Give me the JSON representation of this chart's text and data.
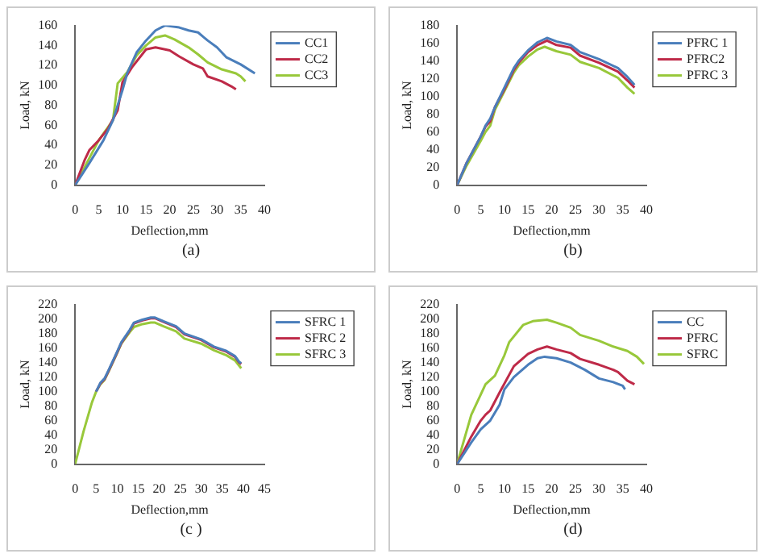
{
  "chart_data": [
    {
      "type": "line",
      "xlabel": "Deflection,mm",
      "ylabel": "Load, kN",
      "annotations": [
        "(a)"
      ],
      "xlim": [
        0,
        40
      ],
      "xticks": [
        0,
        5,
        10,
        15,
        20,
        25,
        30,
        35,
        40
      ],
      "ylim": [
        0,
        160
      ],
      "yticks": [
        0,
        20,
        40,
        60,
        80,
        100,
        120,
        140,
        160
      ],
      "legend": "top right",
      "marker": "none",
      "series": [
        {
          "name": "CC1",
          "color": "#4a7ebb",
          "x": [
            0,
            3,
            6,
            8,
            10,
            11,
            13,
            15,
            17,
            19,
            22,
            24,
            26,
            28,
            30,
            32,
            35,
            38
          ],
          "values": [
            0,
            22,
            45,
            65,
            95,
            112,
            133,
            145,
            155,
            160,
            158,
            155,
            153,
            145,
            138,
            128,
            121,
            112
          ]
        },
        {
          "name": "CC2",
          "color": "#be2a48",
          "x": [
            0,
            2,
            3,
            5,
            7,
            9,
            10,
            12,
            15,
            17,
            20,
            22,
            25,
            27,
            28,
            31,
            33,
            34
          ],
          "values": [
            0,
            25,
            35,
            45,
            57,
            75,
            103,
            118,
            136,
            138,
            135,
            129,
            121,
            117,
            109,
            104,
            99,
            96
          ]
        },
        {
          "name": "CC3",
          "color": "#98c83a",
          "x": [
            0,
            2,
            5,
            8,
            9,
            11,
            13,
            15,
            17,
            19,
            21,
            24,
            26,
            28,
            31,
            34,
            35,
            36
          ],
          "values": [
            0,
            18,
            45,
            65,
            102,
            113,
            130,
            140,
            148,
            150,
            146,
            138,
            131,
            123,
            116,
            112,
            109,
            104
          ]
        }
      ]
    },
    {
      "type": "line",
      "xlabel": "Deflection,mm",
      "ylabel": "Load, kN",
      "annotations": [
        "(b)"
      ],
      "xlim": [
        0,
        40
      ],
      "xticks": [
        0,
        5,
        10,
        15,
        20,
        25,
        30,
        35,
        40
      ],
      "ylim": [
        0,
        180
      ],
      "yticks": [
        0,
        20,
        40,
        60,
        80,
        100,
        120,
        140,
        160,
        180
      ],
      "legend": "top right",
      "marker": "none",
      "series": [
        {
          "name": "PFRC 1",
          "color": "#4a7ebb",
          "x": [
            0,
            2,
            5,
            6,
            7,
            8,
            10,
            12,
            13,
            15,
            17,
            19,
            21,
            24,
            26,
            30,
            34,
            36,
            37.5
          ],
          "values": [
            0,
            25,
            55,
            67,
            75,
            88,
            110,
            132,
            140,
            152,
            161,
            166,
            162,
            158,
            150,
            142,
            132,
            122,
            113
          ]
        },
        {
          "name": "PFRC2",
          "color": "#be2a48",
          "x": [
            0,
            2,
            5,
            6,
            7,
            8,
            10,
            12,
            13,
            15,
            17,
            19,
            21,
            24,
            26,
            30,
            34,
            36,
            37.5
          ],
          "values": [
            0,
            25,
            55,
            66,
            72,
            88,
            108,
            130,
            138,
            150,
            158,
            163,
            158,
            155,
            146,
            138,
            128,
            118,
            110
          ]
        },
        {
          "name": "PFRC 3",
          "color": "#98c83a",
          "x": [
            0,
            2,
            5,
            6,
            7,
            8,
            10,
            12,
            13,
            15,
            17,
            18.5,
            21,
            24,
            26,
            30,
            34,
            36,
            37.5
          ],
          "values": [
            0,
            22,
            50,
            60,
            67,
            85,
            106,
            127,
            135,
            145,
            153,
            156,
            151,
            147,
            139,
            132,
            121,
            110,
            103
          ]
        }
      ]
    },
    {
      "type": "line",
      "xlabel": "Deflection,mm",
      "ylabel": "Load, kN",
      "annotations": [
        "(c )"
      ],
      "xlim": [
        0,
        45
      ],
      "xticks": [
        0,
        5,
        10,
        15,
        20,
        25,
        30,
        35,
        40,
        45
      ],
      "ylim": [
        0,
        220
      ],
      "yticks": [
        0,
        20,
        40,
        60,
        80,
        100,
        120,
        140,
        160,
        180,
        200,
        220
      ],
      "legend": "top right",
      "marker": "none",
      "series": [
        {
          "name": "SFRC 1",
          "color": "#4a7ebb",
          "x": [
            5,
            6,
            7,
            8,
            10,
            11,
            13,
            14,
            16,
            18,
            19,
            21,
            24,
            26,
            30,
            33,
            36,
            38,
            39,
            39.5
          ],
          "values": [
            100,
            112,
            118,
            130,
            155,
            168,
            185,
            195,
            199,
            202,
            202,
            197,
            190,
            180,
            172,
            162,
            156,
            149,
            141,
            139
          ]
        },
        {
          "name": "SFRC 2",
          "color": "#be2a48",
          "x": [
            5,
            6,
            7,
            8,
            10,
            11,
            13,
            14,
            16,
            18,
            19,
            21,
            24,
            26,
            30,
            33,
            36,
            38,
            39,
            39.5
          ],
          "values": [
            100,
            111,
            117,
            129,
            154,
            167,
            184,
            194,
            198,
            201,
            201,
            196,
            189,
            179,
            171,
            161,
            155,
            148,
            140,
            138
          ]
        },
        {
          "name": "SFRC 3",
          "color": "#98c83a",
          "x": [
            0,
            2,
            4,
            5,
            6,
            7,
            8,
            10,
            11,
            13,
            14,
            16,
            18,
            19,
            21,
            24,
            26,
            30,
            33,
            36,
            38,
            39.5
          ],
          "values": [
            0,
            45,
            85,
            100,
            110,
            116,
            128,
            153,
            166,
            182,
            189,
            193,
            195,
            195,
            190,
            183,
            173,
            166,
            157,
            150,
            143,
            132
          ]
        }
      ]
    },
    {
      "type": "line",
      "xlabel": "Deflection,mm",
      "ylabel": "Load, kN",
      "annotations": [
        "(d)"
      ],
      "xlim": [
        0,
        40
      ],
      "xticks": [
        0,
        5,
        10,
        15,
        20,
        25,
        30,
        35,
        40
      ],
      "ylim": [
        0,
        220
      ],
      "yticks": [
        0,
        20,
        40,
        60,
        80,
        100,
        120,
        140,
        160,
        180,
        200,
        220
      ],
      "legend": "top right",
      "marker": "none",
      "series": [
        {
          "name": "CC",
          "color": "#4a7ebb",
          "x": [
            0,
            3,
            5,
            7,
            9,
            10,
            12,
            15,
            17,
            18.5,
            21,
            24,
            27,
            30,
            33,
            35,
            35.5
          ],
          "values": [
            0,
            30,
            48,
            60,
            82,
            103,
            120,
            137,
            146,
            148,
            146,
            140,
            130,
            118,
            113,
            108,
            103
          ]
        },
        {
          "name": "PFRC",
          "color": "#be2a48",
          "x": [
            0,
            3,
            5,
            6,
            7,
            9,
            12,
            15,
            17,
            19,
            21,
            24,
            26,
            30,
            33,
            34,
            36,
            37.5
          ],
          "values": [
            0,
            38,
            60,
            68,
            74,
            99,
            135,
            152,
            158,
            162,
            158,
            153,
            145,
            137,
            130,
            127,
            115,
            110
          ]
        },
        {
          "name": "SFRC",
          "color": "#98c83a",
          "x": [
            0,
            3,
            6,
            8,
            10,
            11,
            14,
            16,
            19,
            21,
            24,
            26,
            30,
            33,
            36,
            38,
            39.5
          ],
          "values": [
            0,
            68,
            110,
            122,
            150,
            168,
            192,
            197,
            199,
            195,
            188,
            178,
            170,
            162,
            156,
            148,
            138
          ]
        }
      ]
    }
  ]
}
